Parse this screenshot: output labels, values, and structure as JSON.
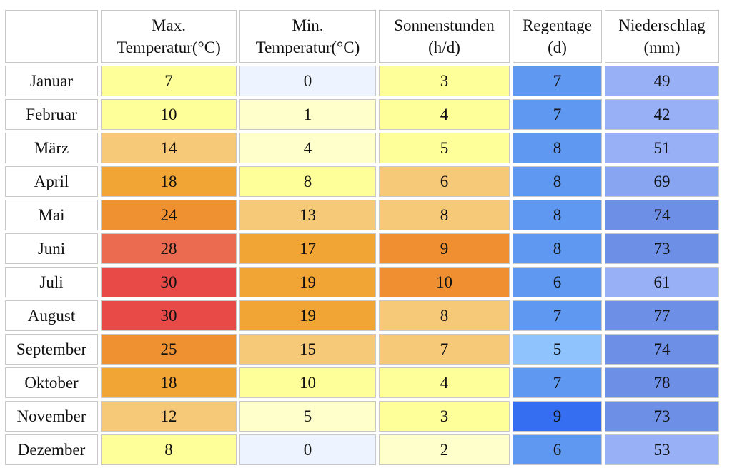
{
  "table": {
    "header": [
      [
        "Max.",
        "Temperatur(°C)"
      ],
      [
        "Min.",
        "Temperatur(°C)"
      ],
      [
        "Sonnenstunden",
        "(h/d)"
      ],
      [
        "Regentage",
        "(d)"
      ],
      [
        "Niederschlag",
        "(mm)"
      ]
    ],
    "rows": [
      [
        "Januar",
        7,
        0,
        3,
        7,
        49
      ],
      [
        "Februar",
        10,
        1,
        4,
        7,
        42
      ],
      [
        "März",
        14,
        4,
        5,
        8,
        51
      ],
      [
        "April",
        18,
        8,
        6,
        8,
        69
      ],
      [
        "Mai",
        24,
        13,
        8,
        8,
        74
      ],
      [
        "Juni",
        28,
        17,
        9,
        8,
        73
      ],
      [
        "Juli",
        30,
        19,
        10,
        6,
        61
      ],
      [
        "August",
        30,
        19,
        8,
        7,
        77
      ],
      [
        "September",
        25,
        15,
        7,
        5,
        74
      ],
      [
        "Oktober",
        18,
        10,
        4,
        7,
        78
      ],
      [
        "November",
        12,
        5,
        3,
        9,
        73
      ],
      [
        "Dezember",
        8,
        0,
        2,
        6,
        53
      ]
    ]
  }
}
